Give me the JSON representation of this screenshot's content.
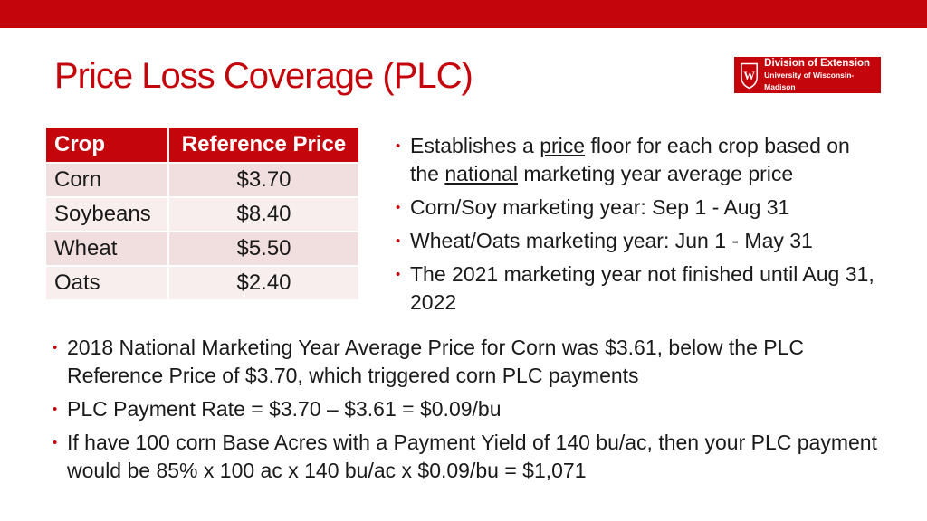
{
  "slide": {
    "title": "Price Loss Coverage (PLC)"
  },
  "logo": {
    "line1": "Division of Extension",
    "line2": "University of Wisconsin-Madison",
    "crest_icon": "uw-crest-icon",
    "crest_letter": "W"
  },
  "table": {
    "headers": [
      "Crop",
      "Reference Price"
    ],
    "rows": [
      {
        "crop": "Corn",
        "price": "$3.70"
      },
      {
        "crop": "Soybeans",
        "price": "$8.40"
      },
      {
        "crop": "Wheat",
        "price": "$5.50"
      },
      {
        "crop": "Oats",
        "price": "$2.40"
      }
    ]
  },
  "right_bullets": [
    {
      "pre": "Establishes a ",
      "u1": "price",
      "mid": " floor for each crop based on the ",
      "u2": "national",
      "post": " marketing year average price"
    },
    {
      "text": "Corn/Soy marketing year: Sep 1 - Aug 31"
    },
    {
      "text": "Wheat/Oats marketing year: Jun 1 - May 31"
    },
    {
      "text": "The 2021 marketing year not finished until Aug 31, 2022"
    }
  ],
  "bottom_bullets": [
    "2018 National Marketing Year Average Price for Corn was $3.61, below the PLC Reference Price of $3.70, which triggered corn PLC payments",
    "PLC Payment Rate = $3.70 – $3.61 = $0.09/bu",
    "If have 100 corn Base Acres with a Payment Yield of 140 bu/ac, then your PLC payment would be 85% x 100 ac x 140 bu/ac x $0.09/bu = $1,071"
  ],
  "bullet_glyph": "•",
  "colors": {
    "accent": "#c5050c",
    "row_odd": "#f1dede",
    "row_even": "#f8eeee",
    "text": "#1a1a1a"
  }
}
